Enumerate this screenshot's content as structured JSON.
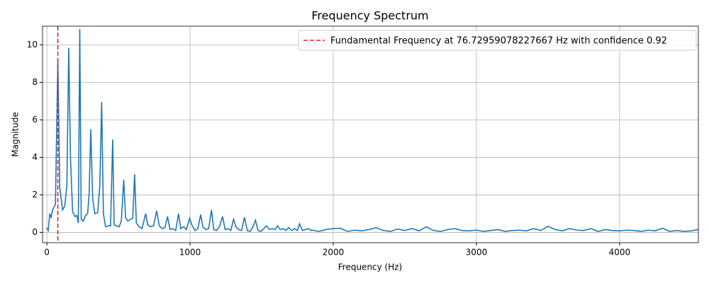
{
  "chart_data": {
    "type": "line",
    "title": "Frequency Spectrum",
    "x_label": "Frequency (Hz)",
    "y_label": "Magnitude",
    "xlim": [
      -30,
      4550
    ],
    "ylim": [
      -0.55,
      11.0
    ],
    "xticks": [
      0,
      1000,
      2000,
      3000,
      4000
    ],
    "yticks": [
      0,
      2,
      4,
      6,
      8,
      10
    ],
    "grid": true,
    "legend_loc": "upper right",
    "x": [
      0,
      10,
      20,
      30,
      40,
      60,
      77,
      90,
      110,
      125,
      140,
      153,
      165,
      180,
      195,
      210,
      220,
      230,
      240,
      255,
      270,
      285,
      295,
      307,
      320,
      335,
      355,
      370,
      383,
      395,
      410,
      430,
      445,
      460,
      470,
      485,
      505,
      520,
      537,
      550,
      565,
      585,
      600,
      613,
      625,
      645,
      665,
      690,
      705,
      725,
      745,
      767,
      785,
      805,
      825,
      843,
      860,
      880,
      900,
      920,
      935,
      955,
      975,
      997,
      1015,
      1035,
      1055,
      1074,
      1090,
      1110,
      1130,
      1150,
      1165,
      1185,
      1205,
      1227,
      1245,
      1265,
      1285,
      1304,
      1320,
      1340,
      1360,
      1380,
      1400,
      1420,
      1440,
      1457,
      1475,
      1495,
      1515,
      1534,
      1555,
      1575,
      1595,
      1611,
      1630,
      1650,
      1670,
      1688,
      1710,
      1730,
      1750,
      1765,
      1785,
      1805,
      1825,
      1845,
      1850,
      1900,
      1950,
      2000,
      2050,
      2100,
      2150,
      2200,
      2250,
      2300,
      2350,
      2400,
      2450,
      2500,
      2550,
      2600,
      2650,
      2700,
      2750,
      2800,
      2850,
      2900,
      2950,
      3000,
      3050,
      3100,
      3150,
      3200,
      3250,
      3300,
      3350,
      3400,
      3450,
      3500,
      3550,
      3600,
      3650,
      3700,
      3750,
      3800,
      3850,
      3900,
      3950,
      4000,
      4050,
      4100,
      4150,
      4200,
      4250,
      4300,
      4350,
      4400,
      4450,
      4500,
      4550
    ],
    "series": [
      {
        "color": "#1f77b4",
        "values": [
          0.25,
          0.1,
          1.0,
          0.8,
          1.2,
          1.5,
          9.2,
          2.4,
          1.2,
          1.4,
          2.5,
          9.85,
          4.0,
          1.1,
          0.85,
          0.9,
          0.5,
          10.85,
          0.7,
          0.6,
          0.9,
          1.0,
          2.0,
          5.5,
          1.8,
          1.0,
          1.05,
          2.5,
          6.95,
          1.0,
          0.3,
          0.35,
          0.35,
          4.95,
          0.4,
          0.35,
          0.3,
          0.6,
          2.8,
          0.8,
          0.6,
          0.7,
          0.75,
          3.1,
          0.5,
          0.3,
          0.2,
          1.0,
          0.4,
          0.3,
          0.35,
          1.15,
          0.35,
          0.2,
          0.25,
          0.85,
          0.15,
          0.2,
          0.1,
          1.0,
          0.2,
          0.3,
          0.15,
          0.75,
          0.35,
          0.1,
          0.2,
          0.95,
          0.3,
          0.15,
          0.2,
          1.2,
          0.15,
          0.1,
          0.3,
          0.85,
          0.15,
          0.2,
          0.1,
          0.7,
          0.3,
          0.15,
          0.1,
          0.8,
          0.1,
          0.05,
          0.3,
          0.65,
          0.1,
          0.05,
          0.2,
          0.35,
          0.15,
          0.2,
          0.15,
          0.35,
          0.15,
          0.2,
          0.1,
          0.25,
          0.1,
          0.2,
          0.1,
          0.45,
          0.1,
          0.15,
          0.2,
          0.1,
          0.12,
          0.05,
          0.15,
          0.2,
          0.22,
          0.05,
          0.12,
          0.08,
          0.15,
          0.25,
          0.1,
          0.05,
          0.18,
          0.1,
          0.2,
          0.08,
          0.3,
          0.1,
          0.05,
          0.15,
          0.2,
          0.1,
          0.08,
          0.12,
          0.05,
          0.1,
          0.15,
          0.05,
          0.1,
          0.12,
          0.08,
          0.2,
          0.1,
          0.32,
          0.15,
          0.08,
          0.2,
          0.12,
          0.1,
          0.2,
          0.05,
          0.15,
          0.1,
          0.08,
          0.12,
          0.1,
          0.05,
          0.12,
          0.08,
          0.22,
          0.05,
          0.1,
          0.05,
          0.08,
          0.15
        ]
      }
    ],
    "vline": {
      "x": 76.72959078227667,
      "color": "#d62728",
      "label": "Fundamental Frequency at 76.72959078227667 Hz with confidence 0.92"
    }
  }
}
